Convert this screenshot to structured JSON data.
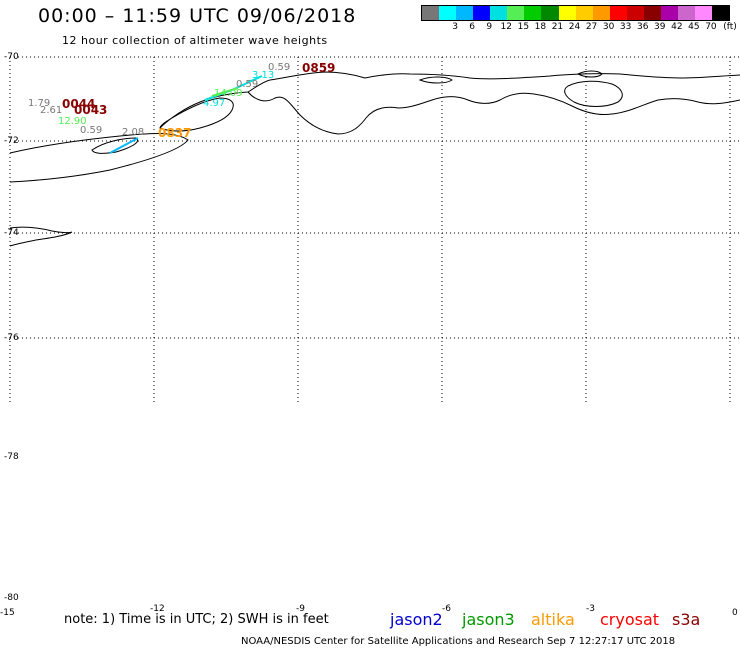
{
  "header": {
    "title": "00:00 – 11:59 UTC 09/06/2018",
    "subtitle": "12 hour collection of altimeter wave heights"
  },
  "legend": {
    "unit": "(ft)",
    "colors": [
      "#777777",
      "#00ffff",
      "#00b8ff",
      "#0000ff",
      "#00e0e0",
      "#55ee55",
      "#00cc00",
      "#008800",
      "#ffff00",
      "#ffcc00",
      "#ff9900",
      "#ff0000",
      "#cc0000",
      "#880000",
      "#aa00aa",
      "#cc66cc",
      "#ff88ff",
      "#000000"
    ],
    "labels": [
      "3",
      "6",
      "9",
      "12",
      "15",
      "18",
      "21",
      "24",
      "27",
      "30",
      "33",
      "36",
      "39",
      "42",
      "45",
      "70"
    ]
  },
  "lat_labels": [
    "-70",
    "-72",
    "-74",
    "-76",
    "-78",
    "-80"
  ],
  "edge_labels": {
    "bottom_left": "-15",
    "bottom_right": "0"
  },
  "observations": [
    {
      "text": "1.79",
      "color": "#777777"
    },
    {
      "text": "2.61",
      "color": "#777777"
    },
    {
      "text": "12.90",
      "color": "#55ee55"
    },
    {
      "text": "0.59",
      "color": "#777777"
    },
    {
      "text": "2.08",
      "color": "#777777"
    },
    {
      "text": "0.59",
      "color": "#777777"
    },
    {
      "text": "3.13",
      "color": "#00e0e0"
    },
    {
      "text": "0.59",
      "color": "#777777"
    },
    {
      "text": "14.09",
      "color": "#55ee55"
    },
    {
      "text": "4.97",
      "color": "#00e0e0"
    }
  ],
  "passes": [
    {
      "text": "0044",
      "color": "#880000"
    },
    {
      "text": "0043",
      "color": "#880000"
    },
    {
      "text": "0837",
      "color": "#ff9900"
    },
    {
      "text": "0859",
      "color": "#880000"
    }
  ],
  "overlay_ticks": [
    "-12",
    "-9",
    "-6",
    "-3"
  ],
  "note": "note: 1) Time is in UTC; 2) SWH is in feet",
  "satellites": [
    {
      "name": "jason2",
      "color": "#0000cc"
    },
    {
      "name": "jason3",
      "color": "#009900"
    },
    {
      "name": "altika",
      "color": "#ff9900"
    },
    {
      "name": "cryosat",
      "color": "#ff0000"
    },
    {
      "name": "s3a",
      "color": "#880000"
    }
  ],
  "footer": "NOAA/NESDIS Center for Satellite Applications and Research    Sep  7 12:27:17 UTC 2018"
}
